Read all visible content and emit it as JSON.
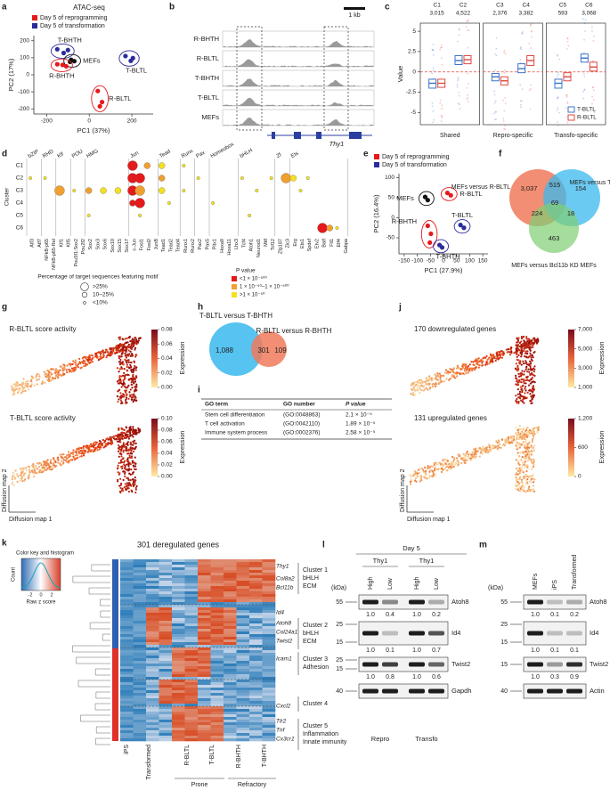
{
  "panels": {
    "a": {
      "letter": "a",
      "title": "ATAC-seq",
      "legend": [
        {
          "label": "Day 5 of reprogramming",
          "color": "#e41a1c"
        },
        {
          "label": "Day 5 of transformation",
          "color": "#2b2b9c"
        }
      ],
      "x_label": "PC1 (37%)",
      "y_label": "PC2 (17%)",
      "xlim": [
        -260,
        300
      ],
      "xticks": [
        -200,
        0,
        200
      ],
      "ylim": [
        -230,
        230
      ],
      "yticks": [
        -200,
        -100,
        0,
        100,
        200
      ],
      "groups": [
        {
          "label": "T-BHTH",
          "color": "#2b2b9c",
          "x": [
            -150,
            -100,
            -120
          ],
          "y": [
            150,
            145,
            128
          ]
        },
        {
          "label": "MEFs",
          "color": "#111111",
          "x": [
            -85,
            -70,
            -90
          ],
          "y": [
            88,
            80,
            76
          ]
        },
        {
          "label": "R-BHTH",
          "color": "#e41a1c",
          "x": [
            -150,
            -125,
            -108
          ],
          "y": [
            62,
            58,
            50
          ]
        },
        {
          "label": "T-BLTL",
          "color": "#2b2b9c",
          "x": [
            170,
            205,
            195
          ],
          "y": [
            110,
            98,
            82
          ]
        },
        {
          "label": "R-BLTL",
          "color": "#e41a1c",
          "x": [
            40,
            60,
            50
          ],
          "y": [
            -95,
            -160,
            -185
          ]
        }
      ]
    },
    "b": {
      "letter": "b",
      "scale": "1 kb",
      "tracks": [
        "R-BHTH",
        "R-BLTL",
        "T-BHTH",
        "T-BLTL",
        "MEFs"
      ],
      "gene": "Thy1"
    },
    "c": {
      "letter": "c",
      "y_label": "Value",
      "ylim": [
        -6.5,
        6
      ],
      "yticks": [
        -5,
        -2.5,
        0,
        2.5,
        5
      ],
      "clusters": [
        "C1",
        "C2",
        "C3",
        "C4",
        "C5",
        "C6"
      ],
      "counts": [
        "3,015",
        "4,522",
        "2,376",
        "3,382",
        "593",
        "3,068"
      ],
      "facets": [
        "Shared",
        "Repro-specific",
        "Transfo-specific"
      ],
      "series": [
        {
          "name": "T-BLTL",
          "color": "#3b73c8",
          "median": [
            -1.4,
            1.4,
            -0.6,
            0.4,
            -1.4,
            1.7
          ],
          "q1": [
            -2.0,
            0.9,
            -1.1,
            -0.1,
            -2.0,
            1.2
          ],
          "q3": [
            -0.9,
            2.0,
            -0.2,
            1.0,
            -0.9,
            2.2
          ]
        },
        {
          "name": "R-BLTL",
          "color": "#e0483f",
          "median": [
            -1.4,
            1.5,
            -1.1,
            1.4,
            -0.6,
            0.6
          ],
          "q1": [
            -1.9,
            1.0,
            -1.6,
            0.8,
            -1.1,
            0.1
          ],
          "q3": [
            -0.9,
            2.0,
            -0.6,
            2.0,
            -0.1,
            1.2
          ]
        }
      ]
    },
    "d": {
      "letter": "d",
      "y_label": "Cluster",
      "rows": [
        "C1",
        "C2",
        "C3",
        "C4",
        "C5",
        "C6"
      ],
      "families": [
        {
          "label": "bZIP",
          "span": 2
        },
        {
          "label": "RHD",
          "span": 2
        },
        {
          "label": "Klf",
          "span": 2
        },
        {
          "label": "POU",
          "span": 2
        },
        {
          "label": "HMG",
          "span": 6
        },
        {
          "label": "Jun",
          "span": 4
        },
        {
          "label": "Tead",
          "span": 3
        },
        {
          "label": "Runx",
          "span": 2
        },
        {
          "label": "Pax",
          "span": 2
        },
        {
          "label": "Homeobox",
          "span": 4
        },
        {
          "label": "bHLH",
          "span": 5
        },
        {
          "label": "Zf",
          "span": 2
        },
        {
          "label": "Ets",
          "span": 8
        }
      ],
      "genes": [
        "Atf3",
        "Atf7",
        "NFkB-p65",
        "NFkB-p65-Rel",
        "Klf1",
        "Klf5",
        "Pou5f1:Sox2",
        "Pou2f2",
        "Sox2",
        "Sox3",
        "Sox6",
        "Sox10",
        "Sox15",
        "Sox17",
        "c-Jun",
        "Fosl1",
        "Fosl2",
        "JunB",
        "Tead1",
        "Tead2",
        "Tead4",
        "Runx1",
        "Runx2",
        "Pax2",
        "Pax5",
        "Pitx1",
        "Hoxa9",
        "Hoxa11",
        "Lhx3",
        "Tcf4",
        "Atoh1",
        "Neurod1",
        "Mitf",
        "Tcf12",
        "Zfp187",
        "Zic3",
        "Erg",
        "Ets1",
        "Spdef",
        "Etv2",
        "Batf",
        "Fli1",
        "Elf4",
        "Gabpa"
      ],
      "size_title": "Percentage of target sequences featuring motif",
      "size_labels": [
        ">25%",
        "10–25%",
        "<10%"
      ],
      "p_title": "P value",
      "p_labels": [
        "<1 × 10⁻⁵⁰⁰",
        "1 × 10⁻⁵⁰–1 × 10⁻⁵⁰⁰",
        ">1 × 10⁻⁵⁰"
      ],
      "p_colors": [
        "#e41a1c",
        "#f0a030",
        "#f5e020"
      ],
      "dots": [
        [
          14,
          0,
          0,
          0
        ],
        [
          16,
          0,
          1,
          1
        ],
        [
          18,
          0,
          1,
          2
        ],
        [
          21,
          0,
          2,
          2
        ],
        [
          0,
          1,
          2,
          2
        ],
        [
          2,
          1,
          2,
          2
        ],
        [
          14,
          1,
          0,
          0
        ],
        [
          15,
          1,
          0,
          0
        ],
        [
          18,
          1,
          1,
          1
        ],
        [
          23,
          1,
          2,
          2
        ],
        [
          29,
          1,
          2,
          2
        ],
        [
          33,
          1,
          2,
          2
        ],
        [
          35,
          1,
          0,
          1
        ],
        [
          36,
          1,
          1,
          2
        ],
        [
          38,
          1,
          2,
          2
        ],
        [
          4,
          2,
          0,
          1
        ],
        [
          6,
          2,
          2,
          2
        ],
        [
          8,
          2,
          1,
          1
        ],
        [
          10,
          2,
          1,
          2
        ],
        [
          12,
          2,
          1,
          2
        ],
        [
          14,
          2,
          0,
          0
        ],
        [
          15,
          2,
          0,
          1
        ],
        [
          18,
          2,
          1,
          2
        ],
        [
          21,
          2,
          2,
          2
        ],
        [
          31,
          2,
          2,
          2
        ],
        [
          37,
          2,
          2,
          2
        ],
        [
          14,
          3,
          1,
          0
        ],
        [
          15,
          3,
          0,
          0
        ],
        [
          19,
          3,
          2,
          2
        ],
        [
          25,
          3,
          2,
          2
        ],
        [
          8,
          4,
          2,
          2
        ],
        [
          15,
          4,
          2,
          2
        ],
        [
          30,
          4,
          2,
          2
        ],
        [
          40,
          5,
          0,
          0
        ],
        [
          41,
          5,
          1,
          1
        ],
        [
          42,
          5,
          2,
          2
        ]
      ]
    },
    "e": {
      "letter": "e",
      "legend": [
        {
          "label": "Day 5 of reprogramming",
          "color": "#e41a1c"
        },
        {
          "label": "Day 5 of transformation",
          "color": "#2b2b9c"
        }
      ],
      "x_label": "PC1 (27.9%)",
      "y_label": "PC2 (16.4%)",
      "xlim": [
        -170,
        170
      ],
      "xticks": [
        -150,
        -100,
        -50,
        0,
        50,
        100,
        150
      ],
      "ylim": [
        -90,
        110
      ],
      "yticks": [
        -50,
        0,
        50,
        100
      ],
      "groups": [
        {
          "label": "MEFs",
          "color": "#111111",
          "x": [
            -70,
            -60
          ],
          "y": [
            52,
            44
          ]
        },
        {
          "label": "R-BLTL",
          "color": "#e41a1c",
          "x": [
            15,
            28
          ],
          "y": [
            62,
            56
          ]
        },
        {
          "label": "R-BHTH",
          "color": "#e41a1c",
          "x": [
            -60,
            -48,
            -52
          ],
          "y": [
            -20,
            -40,
            -62
          ]
        },
        {
          "label": "T-BLTL",
          "color": "#2b2b9c",
          "x": [
            65,
            78
          ],
          "y": [
            -18,
            -25
          ]
        },
        {
          "label": "T-BHTH",
          "color": "#2b2b9c",
          "x": [
            -15,
            -5
          ],
          "y": [
            -68,
            -74
          ]
        }
      ]
    },
    "f": {
      "letter": "f",
      "sets": [
        "MEFs versus R-BLTL",
        "MEFs versus T-BLTL",
        "MEFs versus Bcl11b KD MEFs"
      ],
      "counts": {
        "r_only": "3,037",
        "rt": "515",
        "t_only": "154",
        "all": "69",
        "rk": "224",
        "tk": "18",
        "k_only": "463"
      }
    },
    "g": {
      "letter": "g",
      "maps": [
        {
          "title": "R-BLTL score activity",
          "ticks": [
            {
              "value": 0,
              "label": "0.00"
            },
            {
              "value": 0.02,
              "label": "0.02"
            },
            {
              "value": 0.04,
              "label": "0.04"
            },
            {
              "value": 0.06,
              "label": "0.06"
            },
            {
              "value": 0.08,
              "label": "0.08"
            }
          ],
          "lim": [
            0,
            0.08
          ]
        },
        {
          "title": "T-BLTL score activity",
          "ticks": [
            {
              "value": 0,
              "label": "0.00"
            },
            {
              "value": 0.02,
              "label": "0.02"
            },
            {
              "value": 0.04,
              "label": "0.04"
            },
            {
              "value": 0.06,
              "label": "0.06"
            },
            {
              "value": 0.08,
              "label": "0.08"
            },
            {
              "value": 0.1,
              "label": "0.10"
            }
          ],
          "lim": [
            0,
            0.1
          ]
        }
      ],
      "bar_label": "Expression",
      "x_label": "Diffusion map 1",
      "y_label": "Diffusion map 2"
    },
    "h": {
      "letter": "h",
      "sets": [
        "T-BLTL versus T-BHTH",
        "R-BLTL versus R-BHTH"
      ],
      "counts": [
        "1,088",
        "301",
        "109"
      ]
    },
    "i": {
      "letter": "i",
      "header": [
        "GO term",
        "GO number",
        "P value"
      ],
      "rows": [
        [
          "Stem cell differentiation",
          "(GO:0048863)",
          "2.1 × 10⁻⁵"
        ],
        [
          "T cell activation",
          "(GO:0042110)",
          "1.89 × 10⁻⁵"
        ],
        [
          "Immune system process",
          "(GO:0002376)",
          "2.58 × 10⁻⁵"
        ]
      ]
    },
    "j": {
      "letter": "j",
      "maps": [
        {
          "title": "170 downregulated genes",
          "ticks": [
            {
              "value": 1000,
              "label": "1,000"
            },
            {
              "value": 3000,
              "label": "3,000"
            },
            {
              "value": 5000,
              "label": "5,000"
            },
            {
              "value": 7000,
              "label": "7,000"
            }
          ],
          "lim": [
            1000,
            7000
          ]
        },
        {
          "title": "131 upregulated genes",
          "ticks": [
            0,
            600,
            {
              "value": 1200,
              "label": "1,200"
            }
          ],
          "lim": [
            0,
            1200
          ]
        }
      ],
      "bar_label": "Expression",
      "x_label": "Diffusion map 1",
      "y_label": "Diffusion map 2"
    },
    "k": {
      "letter": "k",
      "title": "301 deregulated genes",
      "key_title": "Color key and histogram",
      "key_y": "Count",
      "key_x": "Raw z score",
      "key_ticks": [
        -2,
        0,
        2
      ],
      "genes": [
        "Thy1",
        "Col8a2",
        "Bcl11b",
        "Id4",
        "Atoh8",
        "Col24a1",
        "Twist2",
        "Icam1",
        "Cxcl2",
        "Tlr2",
        "Tnf",
        "Cx3cr1"
      ],
      "clusters": [
        [
          "Cluster 1",
          "bHLH",
          "ECM"
        ],
        [
          "Cluster 2",
          "bHLH",
          "ECM"
        ],
        [
          "Cluster 3",
          "Adhesion"
        ],
        [
          "Cluster 4"
        ],
        [
          "Cluster 5",
          "Inflammation",
          "Innate immunity"
        ]
      ],
      "columns": [
        "iPS",
        "Transformed",
        "R-BLTL",
        "T-BLTL",
        "R-BHTH",
        "T-BHTH"
      ],
      "groups": [
        "Prone",
        "Refractory"
      ]
    },
    "l": {
      "letter": "l",
      "title": "Day 5",
      "unit": "(kDa)",
      "groups": [
        "Thy1",
        "Thy1"
      ],
      "lanes": [
        "High",
        "Low",
        "High",
        "Low"
      ],
      "bottom": [
        "Repro",
        "Transfo"
      ],
      "blots": [
        {
          "name": "Atoh8",
          "markers": [
            55
          ],
          "quant": [
            "1.0",
            "0.4",
            "1.0",
            "0.2"
          ]
        },
        {
          "name": "Id4",
          "markers": [
            25,
            15
          ],
          "quant": [
            "1.0",
            "0.1",
            "1.0",
            "0.7"
          ]
        },
        {
          "name": "Twist2",
          "markers": [
            25,
            15
          ],
          "quant": [
            "1.0",
            "0.8",
            "1.0",
            "0.6"
          ]
        },
        {
          "name": "Gapdh",
          "markers": [
            40
          ]
        }
      ]
    },
    "m": {
      "letter": "m",
      "unit": "(kDa)",
      "lanes": [
        "MEFs",
        "iPS",
        "Transformed"
      ],
      "blots": [
        {
          "name": "Atoh8",
          "markers": [
            55
          ],
          "quant": [
            "1.0",
            "0.1",
            "0.2"
          ]
        },
        {
          "name": "Id4",
          "markers": [
            25,
            15
          ],
          "quant": [
            "1.0",
            "0.1",
            "0.1"
          ]
        },
        {
          "name": "Twist2",
          "markers": [
            15
          ],
          "quant": [
            "1.0",
            "0.3",
            "0.9"
          ]
        },
        {
          "name": "Actin",
          "markers": [
            40
          ]
        }
      ]
    }
  }
}
